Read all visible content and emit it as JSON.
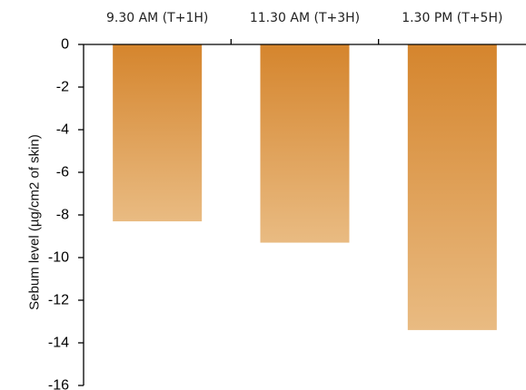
{
  "chart_data": {
    "type": "bar",
    "orientation": "vertical",
    "categories": [
      "9.30 AM (T+1H)",
      "11.30 AM (T+3H)",
      "1.30 PM (T+5H)"
    ],
    "values": [
      -8.3,
      -9.3,
      -13.4
    ],
    "ylabel": "Sebum level  (µg/cm2 of skin)",
    "ylim": [
      -16,
      0
    ],
    "yticks": [
      0,
      -2,
      -4,
      -6,
      -8,
      -10,
      -12,
      -14,
      -16
    ],
    "category_axis_position": "top",
    "grid": false,
    "legend": "none",
    "bar_gradient": {
      "top": "#d5852d",
      "bottom": "#e9bb82"
    },
    "axis_color": "#000000"
  }
}
